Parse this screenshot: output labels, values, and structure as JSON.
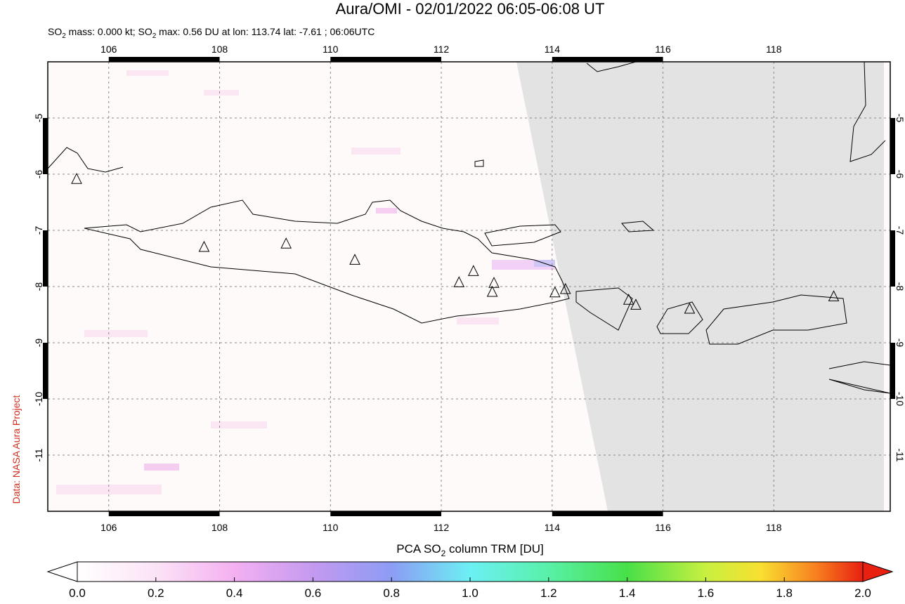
{
  "header": {
    "title": "Aura/OMI - 02/01/2022 06:05-06:08 UT",
    "subtitle": [
      "SO",
      "2",
      " mass: 0.000 kt; SO",
      "2",
      " max: 0.56 DU at lon: 113.74 lat: -7.61 ; 06:06UTC"
    ]
  },
  "map": {
    "xlim": [
      104.9,
      120.1
    ],
    "ylim": [
      -12,
      -4
    ],
    "xticks": [
      106,
      108,
      110,
      112,
      114,
      116,
      118
    ],
    "yticks": [
      -5,
      -6,
      -7,
      -8,
      -9,
      -10,
      -11
    ],
    "volcanoes": [
      {
        "lon": 105.42,
        "lat": -6.09
      },
      {
        "lon": 107.72,
        "lat": -7.3
      },
      {
        "lon": 109.2,
        "lat": -7.24
      },
      {
        "lon": 110.44,
        "lat": -7.53
      },
      {
        "lon": 112.32,
        "lat": -7.93
      },
      {
        "lon": 112.58,
        "lat": -7.73
      },
      {
        "lon": 112.95,
        "lat": -7.94
      },
      {
        "lon": 112.92,
        "lat": -8.1
      },
      {
        "lon": 114.05,
        "lat": -8.11
      },
      {
        "lon": 114.24,
        "lat": -8.05
      },
      {
        "lon": 115.38,
        "lat": -8.24
      },
      {
        "lon": 115.51,
        "lat": -8.33
      },
      {
        "lon": 116.48,
        "lat": -8.4
      },
      {
        "lon": 119.08,
        "lat": -8.18
      }
    ]
  },
  "colorbar": {
    "label": [
      "PCA SO",
      "2",
      " column TRM [DU]"
    ],
    "lim": [
      0,
      2
    ],
    "ticks": [
      {
        "value": 0,
        "label": "0.0"
      },
      0.2,
      0.4,
      0.6,
      0.8,
      {
        "value": 1,
        "label": "1.0"
      },
      1.2,
      1.4,
      1.6,
      1.8,
      {
        "value": 2,
        "label": "2.0"
      }
    ]
  },
  "credit": "Data: NASA Aura Project"
}
